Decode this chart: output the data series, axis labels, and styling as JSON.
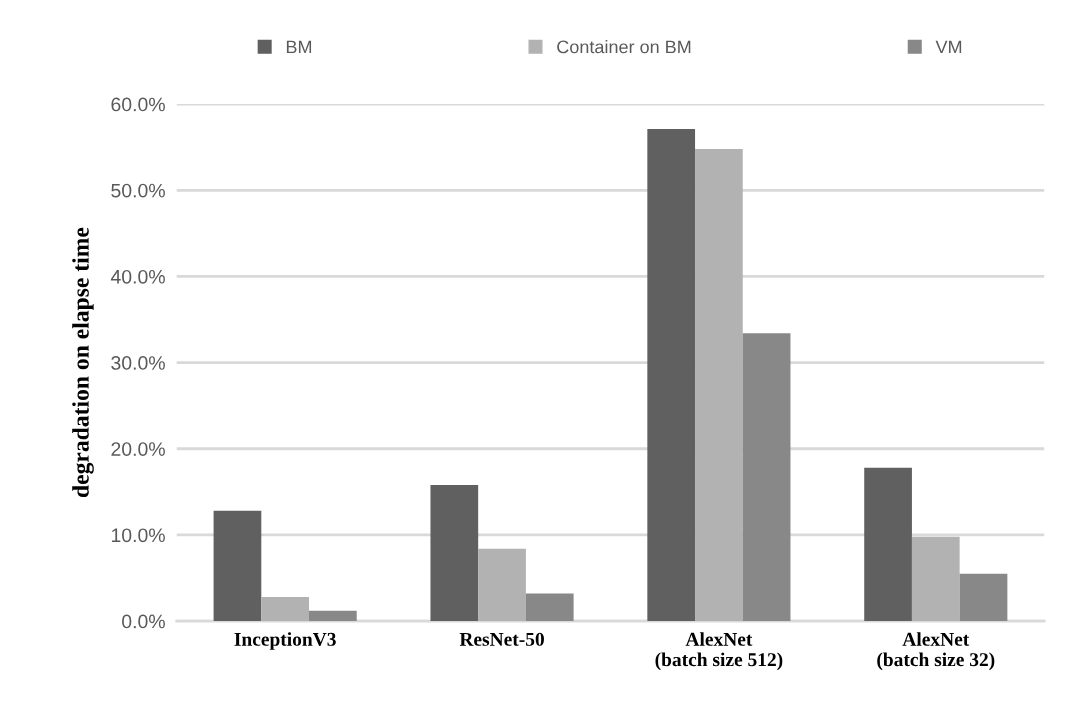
{
  "chart_data": {
    "type": "bar",
    "ylabel": "degradation on elapse time",
    "categories": [
      "InceptionV3",
      "ResNet-50",
      "AlexNet\n(batch size 512)",
      "AlexNet\n(batch size 32)"
    ],
    "series": [
      {
        "name": "BM",
        "color": "#606060",
        "values": [
          12.8,
          15.8,
          57.1,
          17.8
        ]
      },
      {
        "name": "Container on BM",
        "color": "#b2b2b2",
        "values": [
          2.8,
          8.4,
          54.8,
          9.8
        ]
      },
      {
        "name": "VM",
        "color": "#888888",
        "values": [
          1.2,
          3.2,
          33.4,
          5.5
        ]
      }
    ],
    "ylim": [
      0,
      60
    ],
    "yticks": [
      {
        "value": 0,
        "label": "0.0%"
      },
      {
        "value": 10,
        "label": "10.0%"
      },
      {
        "value": 20,
        "label": "20.0%"
      },
      {
        "value": 30,
        "label": "30.0%"
      },
      {
        "value": 40,
        "label": "40.0%"
      },
      {
        "value": 50,
        "label": "50.0%"
      },
      {
        "value": 60,
        "label": "60.0%"
      }
    ],
    "grid": "y",
    "legend": "top"
  }
}
